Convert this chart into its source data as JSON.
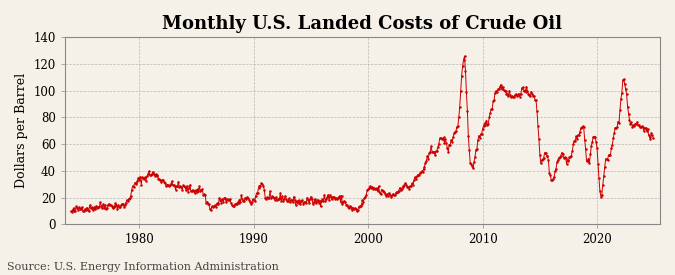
{
  "title": "Monthly U.S. Landed Costs of Crude Oil",
  "ylabel": "Dollars per Barrel",
  "source": "Source: U.S. Energy Information Administration",
  "line_color": "#CC0000",
  "background_color": "#F5F0E8",
  "plot_background_color": "#F5F0E8",
  "grid_color": "#AAAAAA",
  "ylim": [
    0,
    140
  ],
  "yticks": [
    0,
    20,
    40,
    60,
    80,
    100,
    120,
    140
  ],
  "xticks": [
    1980,
    1990,
    2000,
    2010,
    2020
  ],
  "title_fontsize": 13,
  "label_fontsize": 9,
  "source_fontsize": 8,
  "tick_fontsize": 8.5,
  "xlim": [
    1973.5,
    2025.5
  ]
}
